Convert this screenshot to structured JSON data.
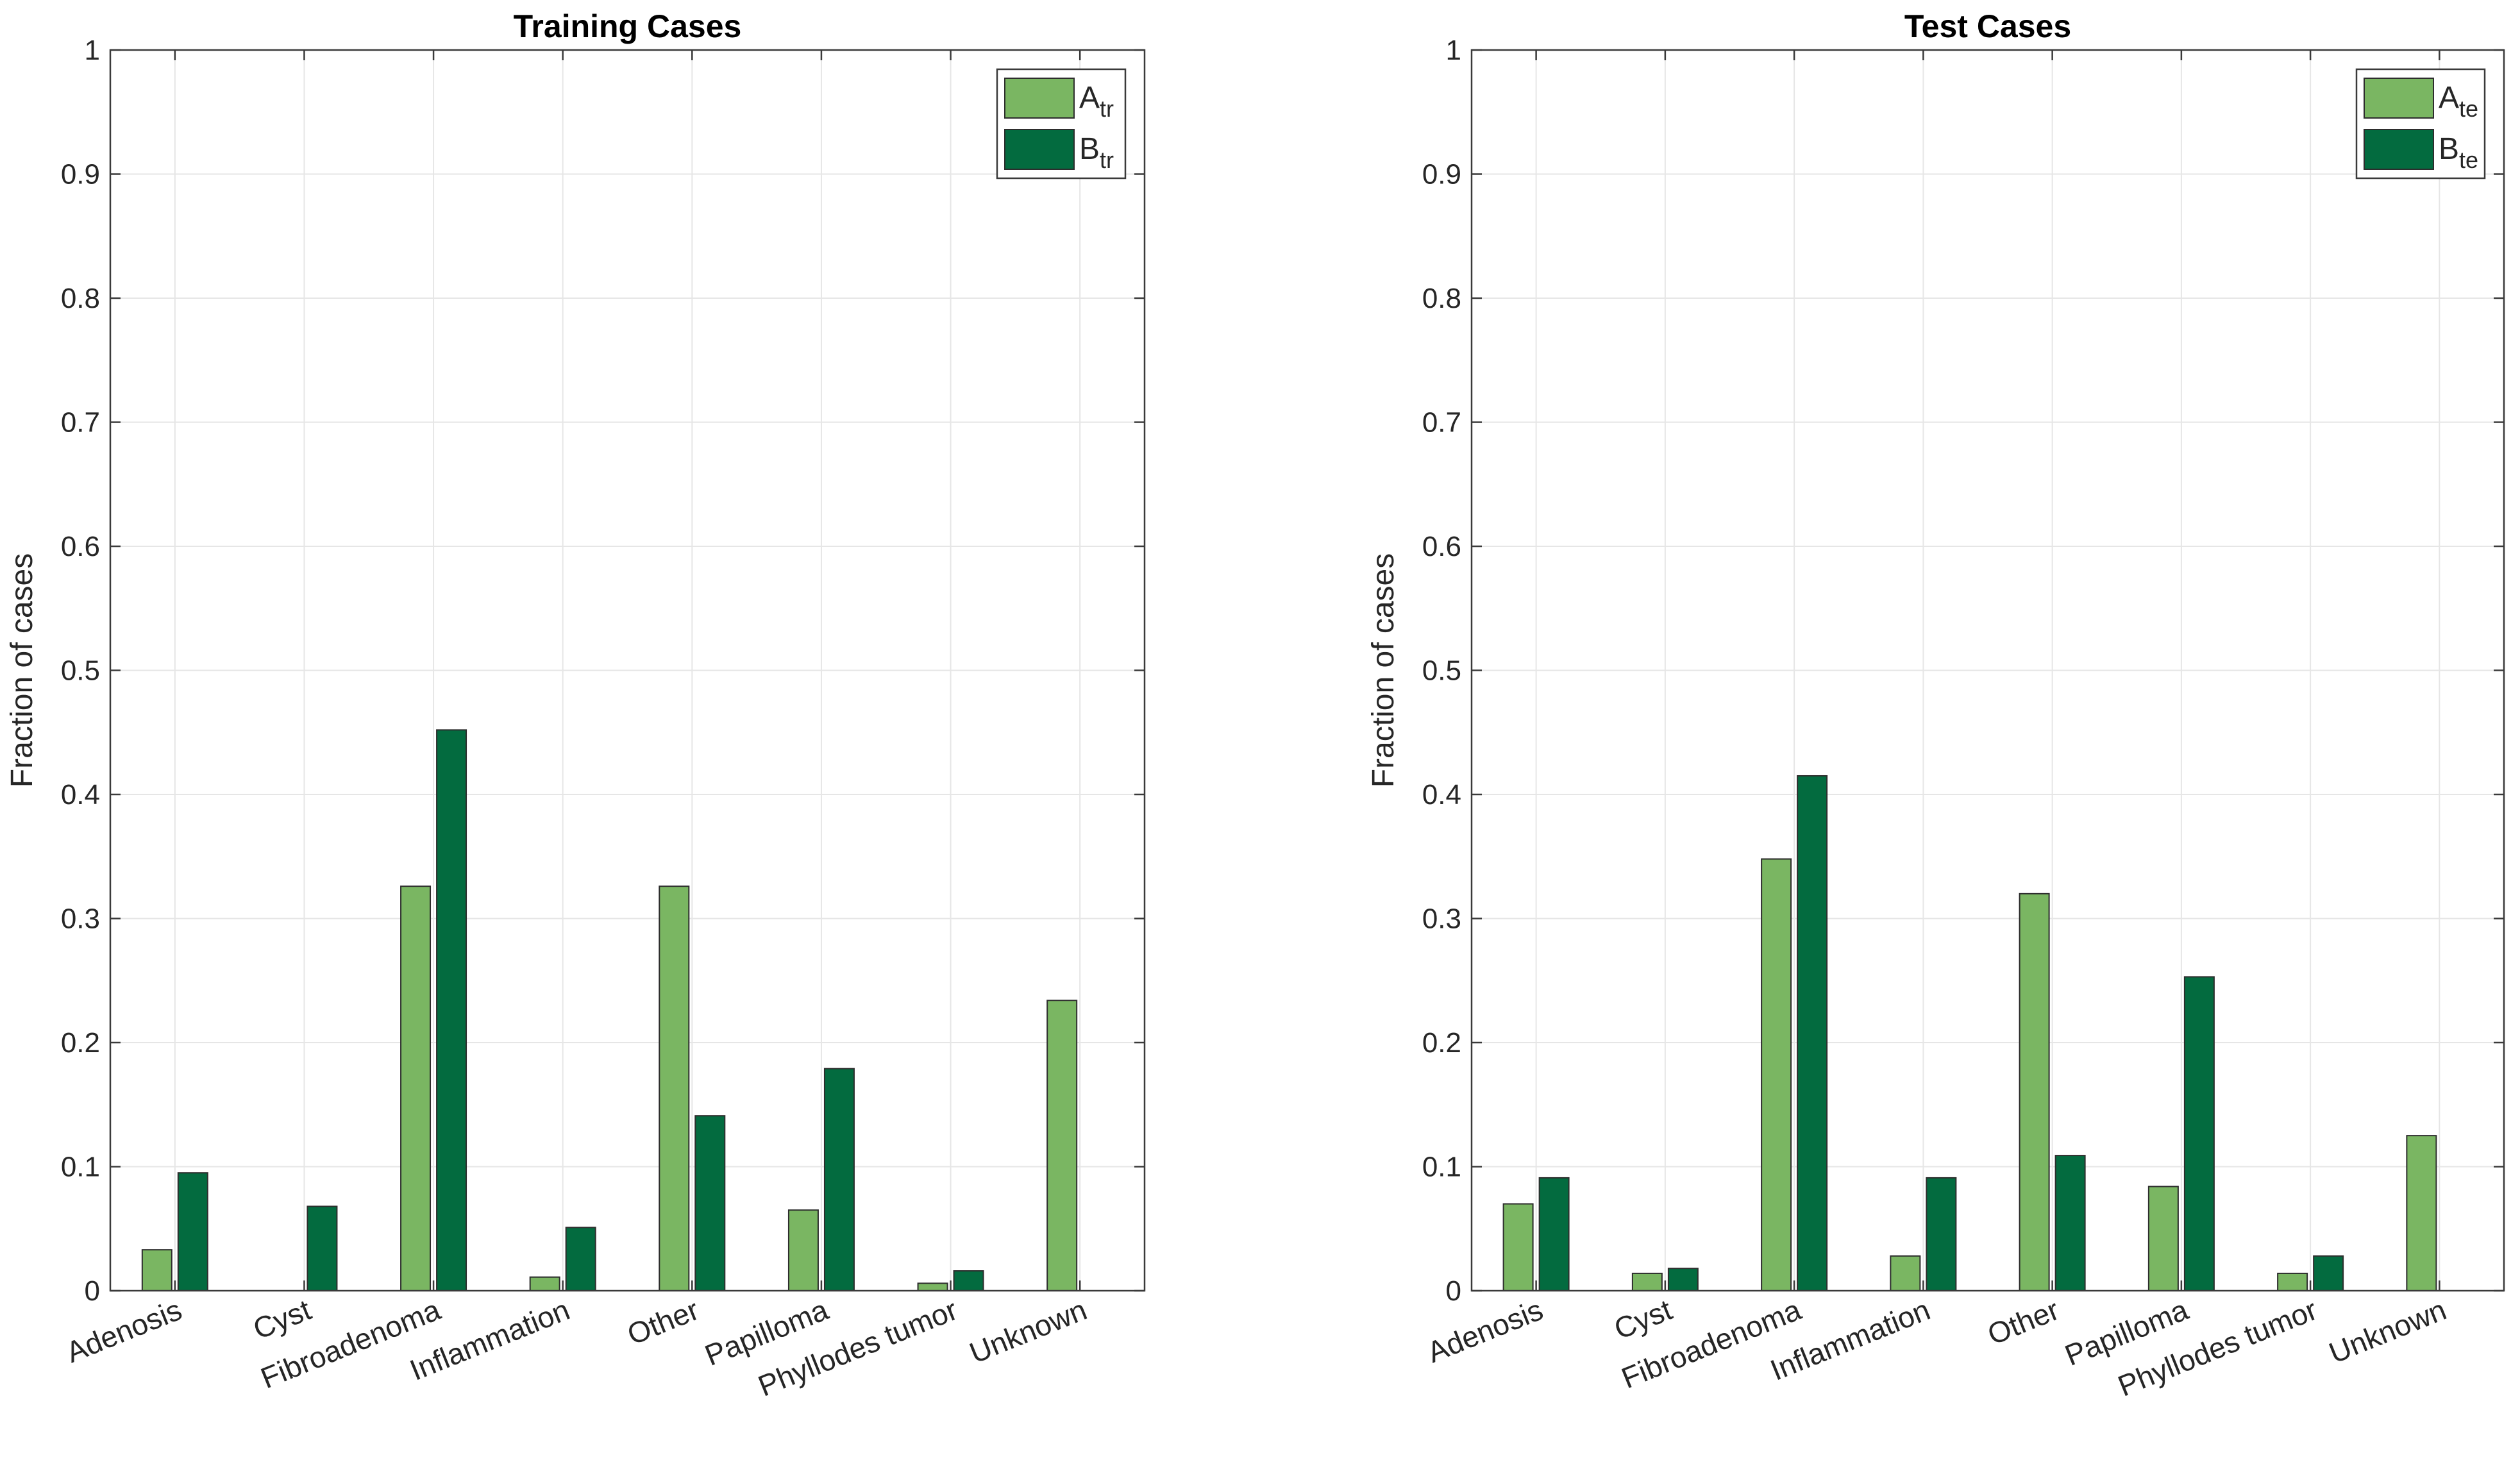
{
  "chart_data": [
    {
      "type": "bar",
      "title": "Training Cases",
      "ylabel": "Fraction of cases",
      "xlabel": "",
      "ylim": [
        0,
        1
      ],
      "yticks": [
        "0",
        "0.1",
        "0.2",
        "0.3",
        "0.4",
        "0.5",
        "0.6",
        "0.7",
        "0.8",
        "0.9",
        "1"
      ],
      "grid": true,
      "legend_position": "top-right",
      "categories": [
        "Adenosis",
        "Cyst",
        "Fibroadenoma",
        "Inflammation",
        "Other",
        "Papilloma",
        "Phyllodes tumor",
        "Unknown"
      ],
      "series": [
        {
          "name": "A",
          "subscript": "tr",
          "color": "#7ab662",
          "values": [
            0.033,
            0.0,
            0.326,
            0.011,
            0.326,
            0.065,
            0.006,
            0.234
          ]
        },
        {
          "name": "B",
          "subscript": "tr",
          "color": "#036b3f",
          "values": [
            0.095,
            0.068,
            0.452,
            0.051,
            0.141,
            0.179,
            0.016,
            0.0
          ]
        }
      ]
    },
    {
      "type": "bar",
      "title": "Test Cases",
      "ylabel": "Fraction of cases",
      "xlabel": "",
      "ylim": [
        0,
        1
      ],
      "yticks": [
        "0",
        "0.1",
        "0.2",
        "0.3",
        "0.4",
        "0.5",
        "0.6",
        "0.7",
        "0.8",
        "0.9",
        "1"
      ],
      "grid": true,
      "legend_position": "top-right",
      "categories": [
        "Adenosis",
        "Cyst",
        "Fibroadenoma",
        "Inflammation",
        "Other",
        "Papilloma",
        "Phyllodes tumor",
        "Unknown"
      ],
      "series": [
        {
          "name": "A",
          "subscript": "te",
          "color": "#7ab662",
          "values": [
            0.07,
            0.014,
            0.348,
            0.028,
            0.32,
            0.084,
            0.014,
            0.125
          ]
        },
        {
          "name": "B",
          "subscript": "te",
          "color": "#036b3f",
          "values": [
            0.091,
            0.018,
            0.415,
            0.091,
            0.109,
            0.253,
            0.028,
            0.0
          ]
        }
      ]
    }
  ]
}
